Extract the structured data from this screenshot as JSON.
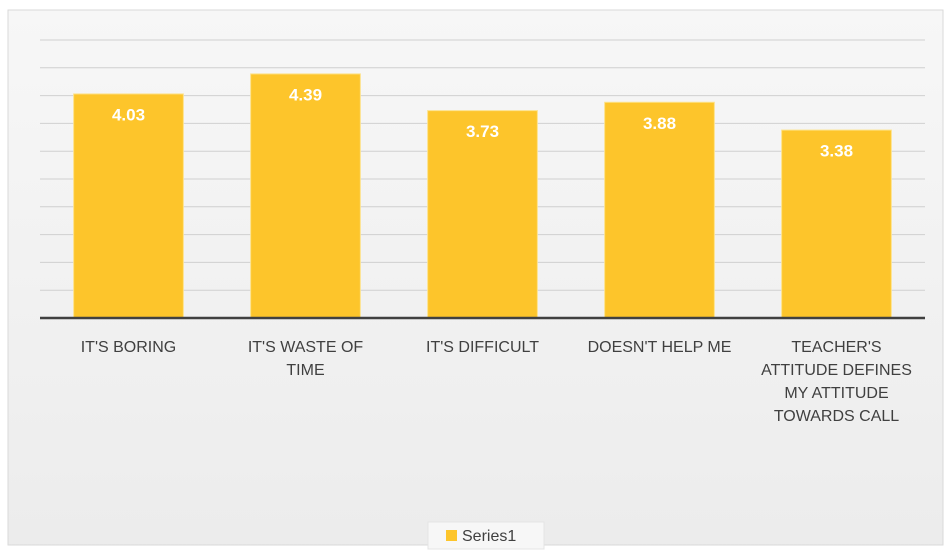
{
  "chart_data": {
    "type": "bar",
    "categories": [
      "IT'S BORING",
      "IT'S WASTE OF TIME",
      "IT'S DIFFICULT",
      "DOESN'T HELP ME",
      "TEACHER'S ATTITUDE DEFINES MY ATTITUDE TOWARDS CALL"
    ],
    "series": [
      {
        "name": "Series1",
        "color": "#fdc52b",
        "values": [
          4.03,
          4.39,
          3.73,
          3.88,
          3.38
        ]
      }
    ],
    "ylim": [
      0,
      5
    ],
    "yticks": [
      0,
      0.5,
      1,
      1.5,
      2,
      2.5,
      3,
      3.5,
      4,
      4.5,
      5
    ],
    "grid": true,
    "legend": "bottom"
  }
}
